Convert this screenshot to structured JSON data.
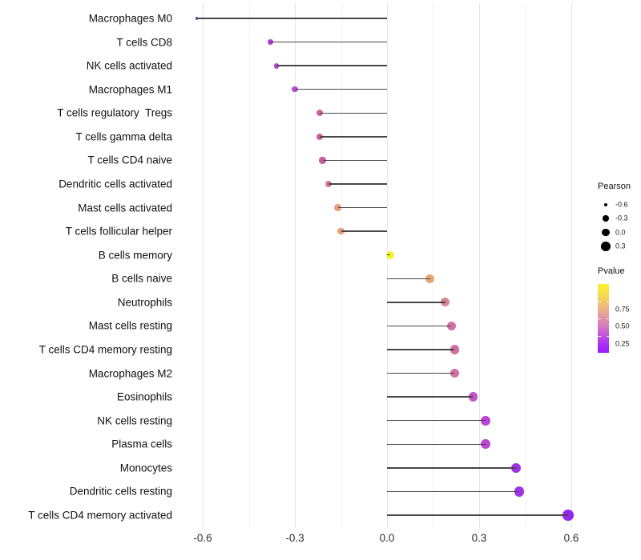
{
  "figure": {
    "background": "#ffffff",
    "stem_color": "#474747",
    "grid_major_color": "#e4e4e4",
    "grid_minor_color": "#f3f3f3"
  },
  "chart_data": {
    "type": "scatter",
    "variant": "lollipop",
    "orientation": "horizontal",
    "title": "",
    "xlabel": "",
    "ylabel": "",
    "xlim": [
      -0.68,
      0.66
    ],
    "grid": "vertical-only",
    "x_major_ticks": [
      -0.6,
      -0.3,
      0.0,
      0.3,
      0.6
    ],
    "x_tick_labels": [
      "-0.6",
      "-0.3",
      "0.0",
      "0.3",
      "0.6"
    ],
    "x_minor_ticks": [
      -0.45,
      -0.15,
      0.15,
      0.45
    ],
    "points": [
      {
        "label": "Macrophages M0",
        "pearson": -0.62,
        "color": "#9B30F2"
      },
      {
        "label": "T cells CD8",
        "pearson": -0.38,
        "color": "#B43EDC"
      },
      {
        "label": "NK cells activated",
        "pearson": -0.36,
        "color": "#B844DA"
      },
      {
        "label": "Macrophages M1",
        "pearson": -0.3,
        "color": "#BD49D6"
      },
      {
        "label": "T cells regulatory  Tregs",
        "pearson": -0.22,
        "color": "#CC639A"
      },
      {
        "label": "T cells gamma delta",
        "pearson": -0.22,
        "color": "#CB629B"
      },
      {
        "label": "T cells CD4 naive",
        "pearson": -0.21,
        "color": "#C45D9F"
      },
      {
        "label": "Dendritic cells activated",
        "pearson": -0.19,
        "color": "#DB7994"
      },
      {
        "label": "Mast cells activated",
        "pearson": -0.16,
        "color": "#E89B7E"
      },
      {
        "label": "T cells follicular helper",
        "pearson": -0.15,
        "color": "#EB9F79"
      },
      {
        "label": "B cells memory",
        "pearson": 0.01,
        "color": "#F5F12B"
      },
      {
        "label": "B cells naive",
        "pearson": 0.14,
        "color": "#E8A671"
      },
      {
        "label": "Neutrophils",
        "pearson": 0.19,
        "color": "#DC8492"
      },
      {
        "label": "Mast cells resting",
        "pearson": 0.21,
        "color": "#D06FA6"
      },
      {
        "label": "T cells CD4 memory resting",
        "pearson": 0.22,
        "color": "#D56F9F"
      },
      {
        "label": "Macrophages M2",
        "pearson": 0.22,
        "color": "#D570A3"
      },
      {
        "label": "Eosinophils",
        "pearson": 0.28,
        "color": "#C354C6"
      },
      {
        "label": "NK cells resting",
        "pearson": 0.32,
        "color": "#BC41D5"
      },
      {
        "label": "Plasma cells",
        "pearson": 0.32,
        "color": "#BC45D2"
      },
      {
        "label": "Monocytes",
        "pearson": 0.42,
        "color": "#A032E6"
      },
      {
        "label": "Dendritic cells resting",
        "pearson": 0.43,
        "color": "#A134E6"
      },
      {
        "label": "T cells CD4 memory activated",
        "pearson": 0.59,
        "color": "#9429EE"
      }
    ],
    "legend_size": {
      "title": "Pearson",
      "dot_color": "#000000",
      "items": [
        {
          "label": "-0.6",
          "value": -0.6
        },
        {
          "label": "-0.3",
          "value": -0.3
        },
        {
          "label": "0.0",
          "value": 0.0
        },
        {
          "label": "0.3",
          "value": 0.3
        }
      ]
    },
    "legend_color": {
      "title": "Pvalue",
      "range": [
        0,
        1
      ],
      "tick_values": [
        0.75,
        0.5,
        0.25
      ],
      "tick_labels": [
        "0.75",
        "0.50",
        "0.25"
      ],
      "gradient_stops_top_to_bottom": [
        "#F9F22C",
        "#F8E046",
        "#F3C968",
        "#ECAF88",
        "#E094A5",
        "#D277C2",
        "#BE55DE",
        "#A930F4",
        "#9C1AFE"
      ]
    }
  }
}
